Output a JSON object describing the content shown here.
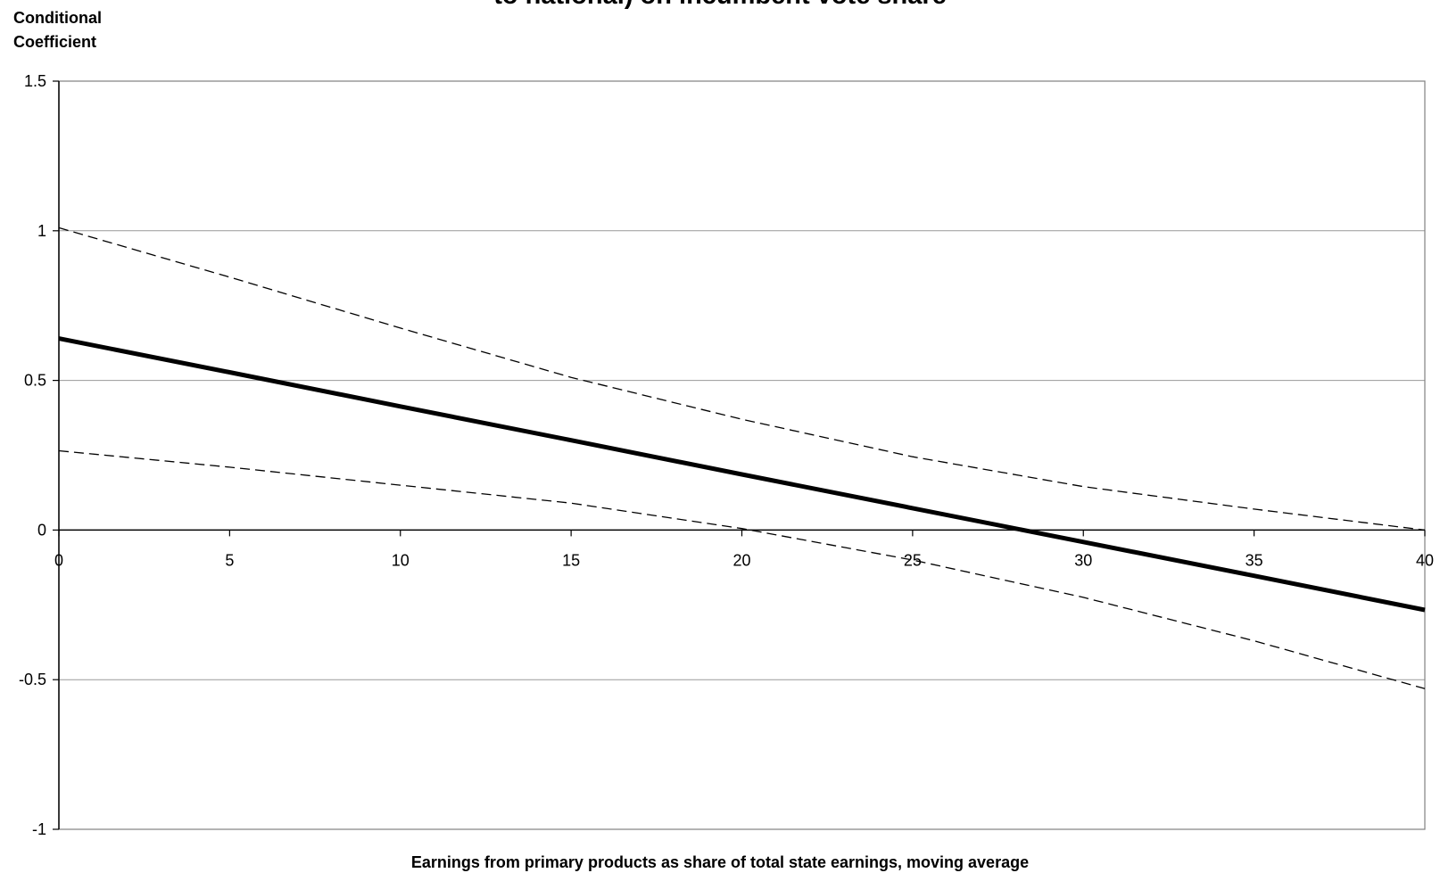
{
  "chart_data": {
    "type": "line",
    "title": "to national) on incumbent vote share",
    "ylabel_lines": [
      "Conditional",
      "Coefficient"
    ],
    "xlabel": "Earnings from primary products as share of total state earnings, moving average",
    "xlim": [
      0,
      40
    ],
    "ylim": [
      -1,
      1.5
    ],
    "x_ticks": [
      0,
      5,
      10,
      15,
      20,
      25,
      30,
      35,
      40
    ],
    "y_ticks": [
      1.5,
      1,
      0.5,
      0,
      -0.5,
      -1
    ],
    "x_tick_labels": [
      "0",
      "5",
      "10",
      "15",
      "20",
      "25",
      "30",
      "35",
      "40"
    ],
    "y_tick_labels": [
      "1.5",
      "1",
      "0.5",
      "0",
      "-0.5",
      "-1"
    ],
    "horizontal_gridlines": [
      1,
      0.5,
      -0.5
    ],
    "grid": true,
    "legend": "none",
    "series": [
      {
        "style": "solid",
        "x": [
          0,
          5,
          10,
          15,
          20,
          25,
          30,
          35,
          40
        ],
        "y": [
          0.64,
          0.527,
          0.413,
          0.3,
          0.186,
          0.073,
          -0.04,
          -0.153,
          -0.267
        ]
      },
      {
        "style": "dashed",
        "x": [
          0,
          5,
          10,
          15,
          20,
          25,
          30,
          35,
          40
        ],
        "y": [
          1.01,
          0.845,
          0.675,
          0.51,
          0.37,
          0.245,
          0.145,
          0.07,
          0.0
        ]
      },
      {
        "style": "dashed",
        "x": [
          0,
          5,
          10,
          15,
          20,
          25,
          30,
          35,
          40
        ],
        "y": [
          0.265,
          0.21,
          0.15,
          0.09,
          0.005,
          -0.1,
          -0.225,
          -0.37,
          -0.53
        ]
      }
    ],
    "colors": {
      "lines": "#000000",
      "grid": "#999999",
      "axes": "#000000",
      "plot_border": "#808080"
    }
  }
}
